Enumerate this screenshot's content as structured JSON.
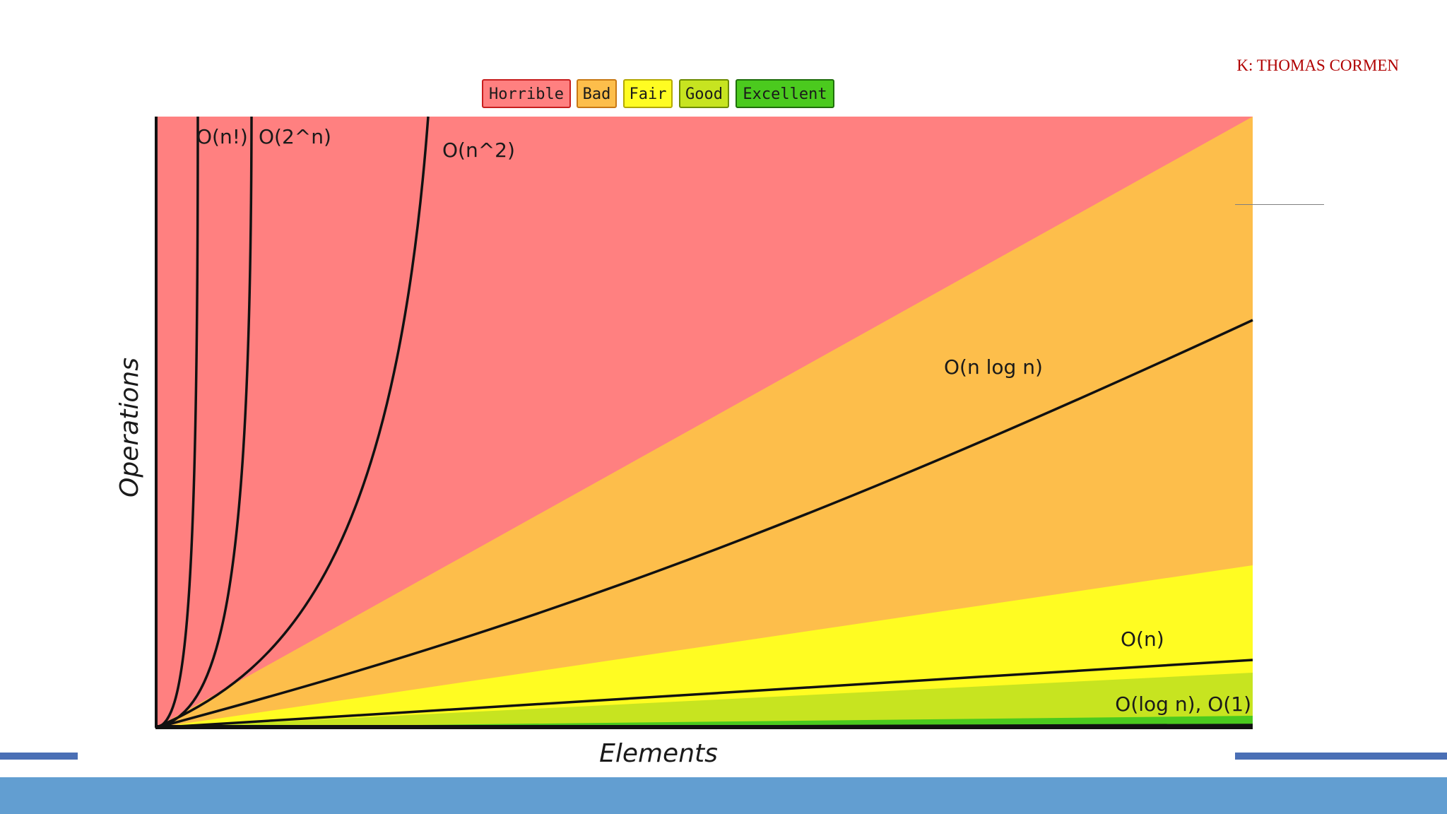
{
  "slide": {
    "author": "K: THOMAS CORMEN",
    "colors": {
      "band": "#629ed1",
      "thin_band": "#4a6fb5",
      "author": "#b00000"
    }
  },
  "chart_data": {
    "type": "area",
    "title": "",
    "xlabel": "Elements",
    "ylabel": "Operations",
    "grid": false,
    "legend_position": "top",
    "legend": [
      {
        "label": "Horrible",
        "fill": "#ff8080",
        "stroke": "#c81e1e"
      },
      {
        "label": "Bad",
        "fill": "#fdbe4b",
        "stroke": "#c87814"
      },
      {
        "label": "Fair",
        "fill": "#fffc22",
        "stroke": "#b4a800"
      },
      {
        "label": "Good",
        "fill": "#c7e420",
        "stroke": "#6e8c00"
      },
      {
        "label": "Excellent",
        "fill": "#4bca1e",
        "stroke": "#1e6e0a"
      }
    ],
    "curves": [
      {
        "name": "O(n!)",
        "label": "O(n!)"
      },
      {
        "name": "O(2^n)",
        "label": "O(2^n)"
      },
      {
        "name": "O(n^2)",
        "label": "O(n^2)"
      },
      {
        "name": "O(n log n)",
        "label": "O(n log n)"
      },
      {
        "name": "O(n)",
        "label": "O(n)"
      },
      {
        "name": "O(log n), O(1)",
        "label": "O(log n), O(1)"
      }
    ]
  }
}
